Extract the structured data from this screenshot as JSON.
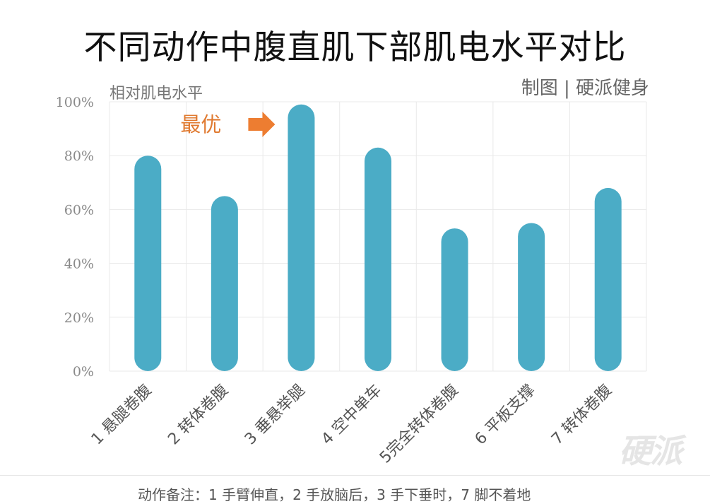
{
  "title": "不同动作中腹直肌下部肌电水平对比",
  "credit": "制图 | 硬派健身",
  "watermark": "硬派",
  "annotation": "最优",
  "footer": "动作备注：1 手臂伸直，2 手放脑后，3 手下垂时，7 脚不着地",
  "colors": {
    "bar": "#4bacc6",
    "arrow": "#ed7d31",
    "annotation": "#e07a30",
    "grid": "#e9e9e9"
  },
  "chart_data": {
    "type": "bar",
    "ylabel": "相对肌电水平",
    "ylim": [
      0,
      100
    ],
    "yticks": [
      "0%",
      "20%",
      "40%",
      "60%",
      "80%",
      "100%"
    ],
    "categories": [
      "1 悬腿卷腹",
      "2 转体卷腹",
      "3 垂悬举腿",
      "4 空中单车",
      "5完全转体卷腹",
      "6 平板支撑",
      "7 转体卷腹"
    ],
    "values": [
      80,
      65,
      99,
      83,
      53,
      55,
      68
    ],
    "grid": true,
    "annotation": {
      "text": "最优",
      "category_index": 2
    }
  }
}
